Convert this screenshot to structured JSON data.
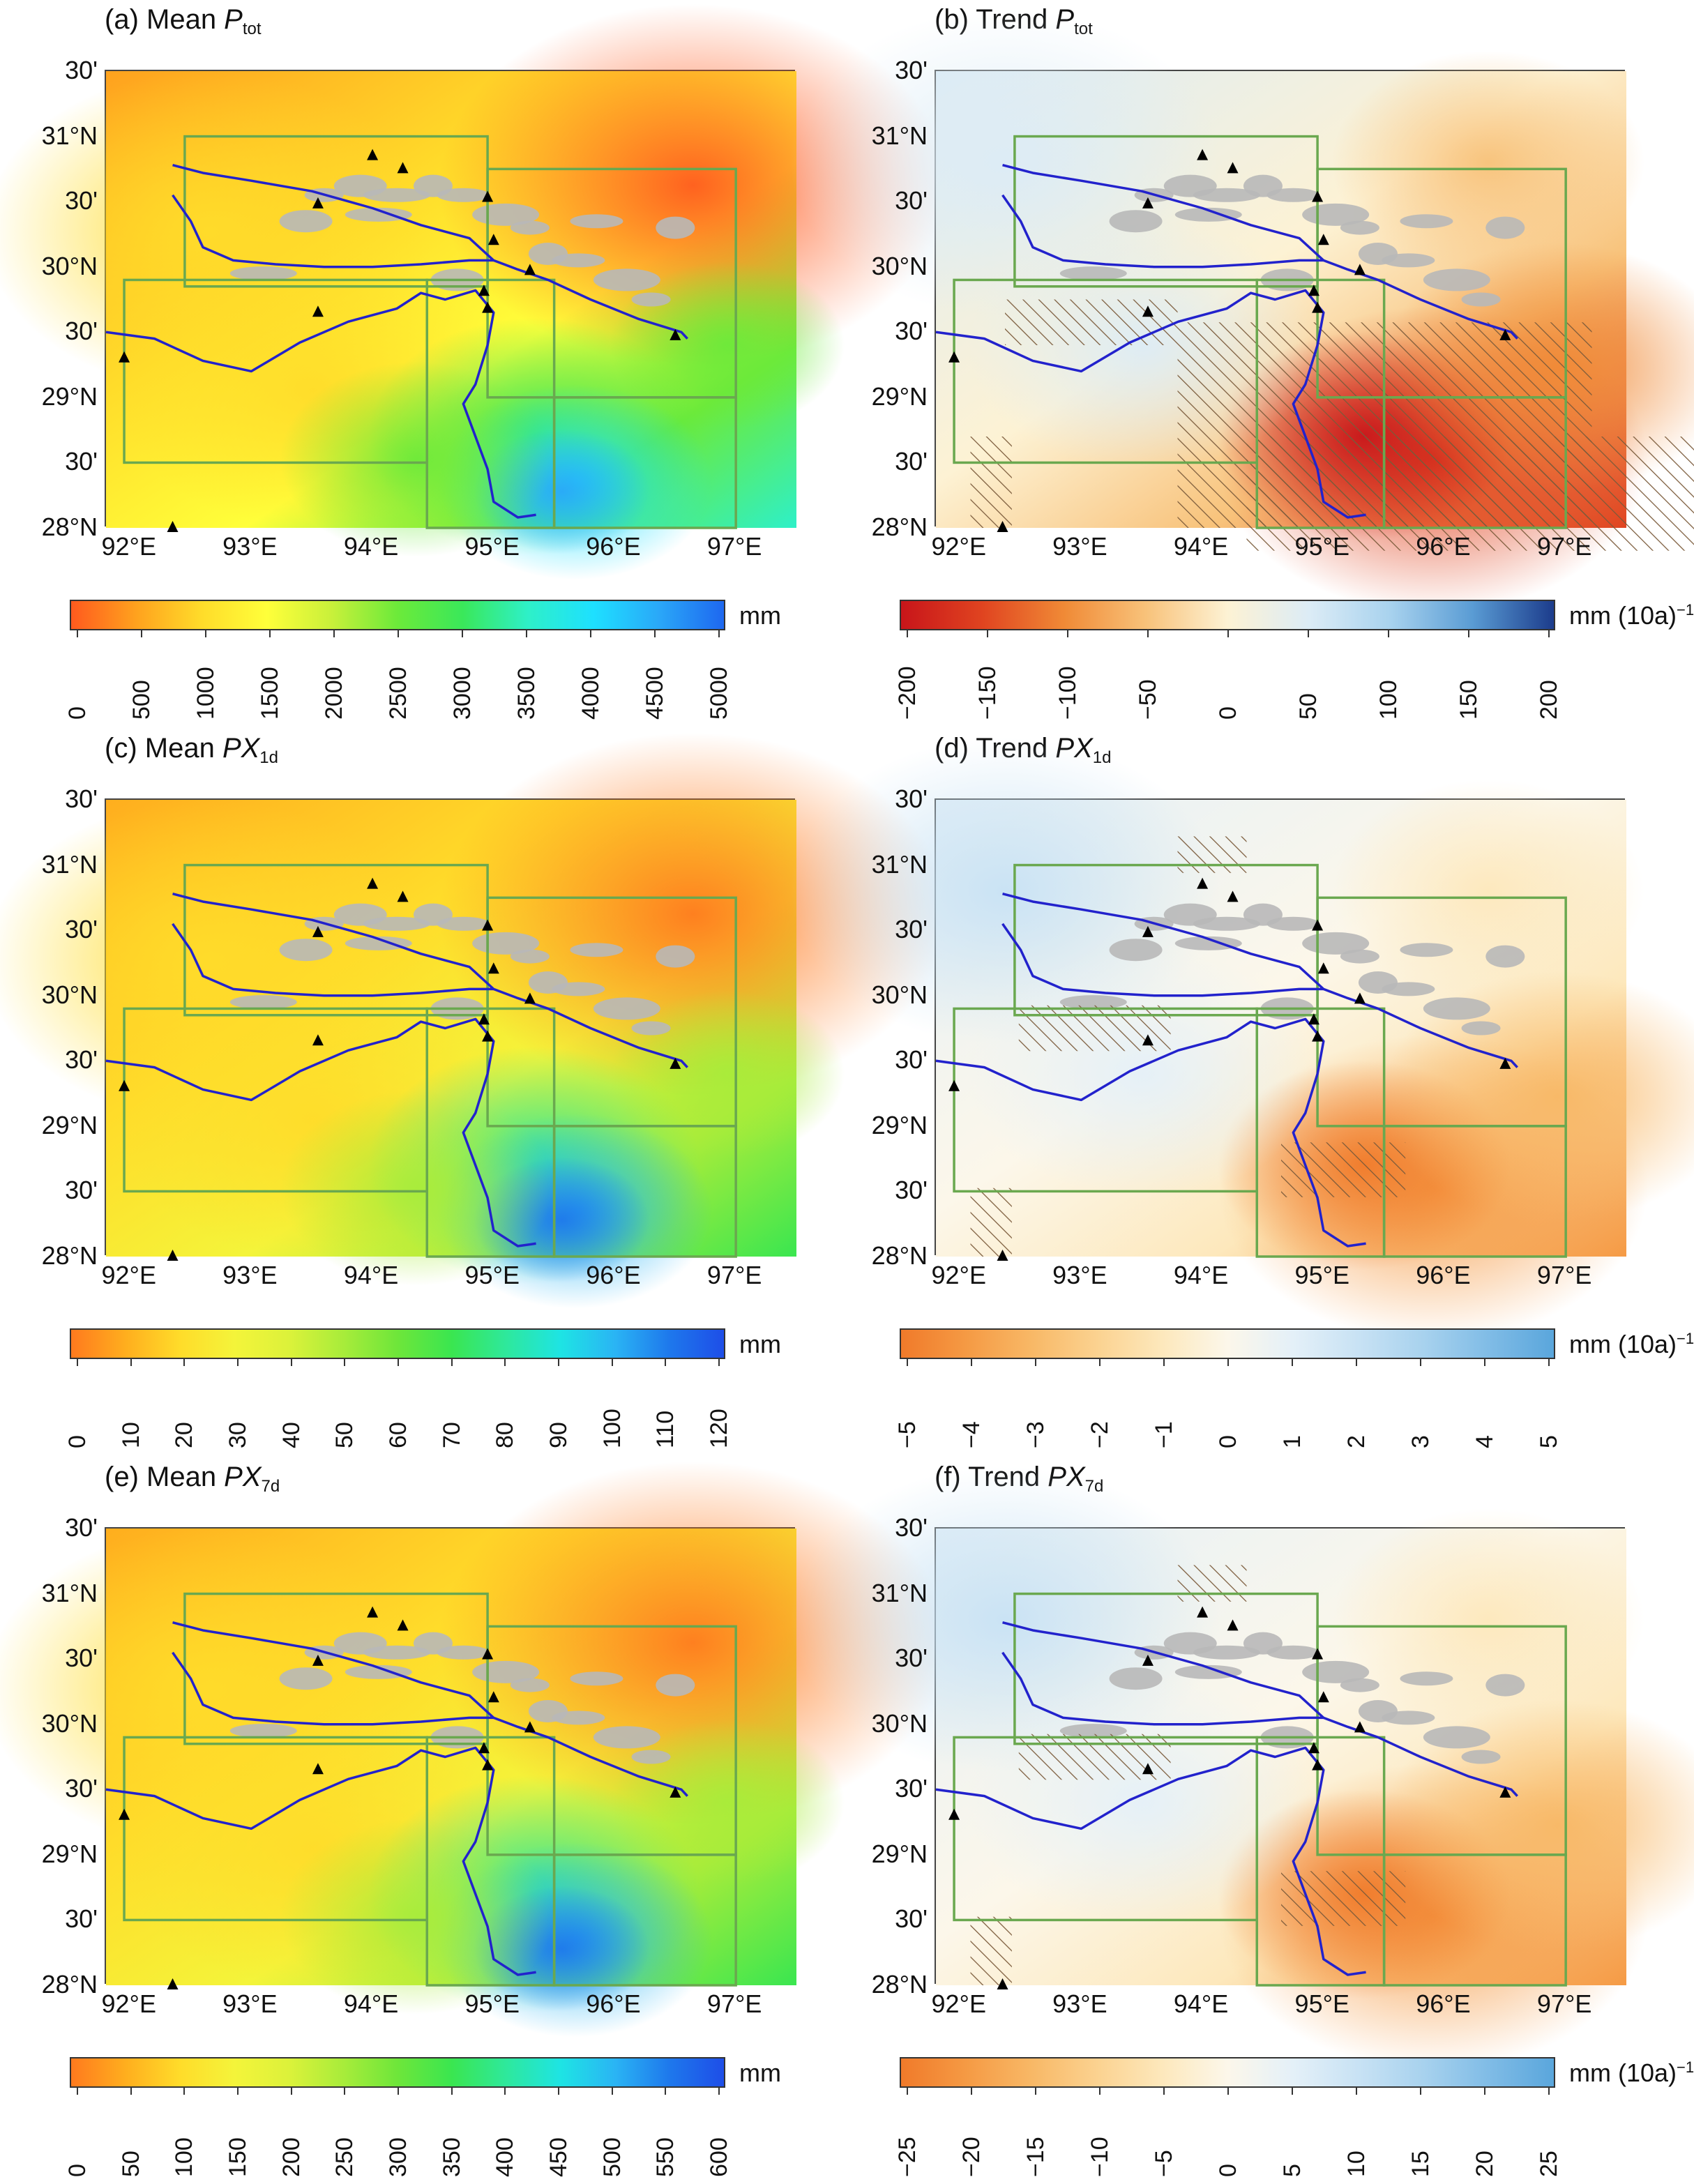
{
  "panels": [
    {
      "id": "a",
      "label": "(a) Mean ",
      "var": "P",
      "sub": "tot",
      "kind": "mean",
      "unit": "mm",
      "unit_sup": "",
      "ticks": [
        "0",
        "500",
        "1000",
        "1500",
        "2000",
        "2500",
        "3000",
        "3500",
        "4000",
        "4500",
        "5000"
      ],
      "colors": [
        "#ff5a1e",
        "#ffa21e",
        "#ffdc2a",
        "#ffff3a",
        "#c8f03a",
        "#6cea3a",
        "#3ae85a",
        "#2ef0c8",
        "#1ee0ff",
        "#2aa8f8",
        "#1e68f0"
      ],
      "base": "#f6b646"
    },
    {
      "id": "b",
      "label": "(b) Trend ",
      "var": "P",
      "sub": "tot",
      "kind": "trend",
      "unit": "mm (10a)",
      "unit_sup": "−1",
      "ticks": [
        "−200",
        "−150",
        "−100",
        "−50",
        "0",
        "50",
        "100",
        "150",
        "200"
      ],
      "colors": [
        "#c8151a",
        "#e04420",
        "#f08a36",
        "#f8c27a",
        "#fdf2d4",
        "#dcecf6",
        "#a8d2ee",
        "#5a9cd4",
        "#1c3c8c"
      ],
      "base": "#dcecf6"
    },
    {
      "id": "c",
      "label": "(c) Mean ",
      "var": "PX",
      "sub": "1d",
      "kind": "mean",
      "unit": "mm",
      "unit_sup": "",
      "ticks": [
        "0",
        "10",
        "20",
        "30",
        "40",
        "50",
        "60",
        "70",
        "80",
        "90",
        "100",
        "110",
        "120"
      ],
      "colors": [
        "#ff7a1e",
        "#ffae1e",
        "#ffdc2a",
        "#f4f43a",
        "#dcf23a",
        "#a8ec3a",
        "#6ee63a",
        "#3ae650",
        "#2ee89c",
        "#1ee4e4",
        "#2ab4f4",
        "#1e78ec",
        "#1e4ee8"
      ],
      "base": "#d4ee58"
    },
    {
      "id": "d",
      "label": "(d) Trend ",
      "var": "PX",
      "sub": "1d",
      "kind": "trend",
      "unit": "mm (10a)",
      "unit_sup": "−1",
      "ticks": [
        "−5",
        "−4",
        "−3",
        "−2",
        "−1",
        "0",
        "1",
        "2",
        "3",
        "4",
        "5"
      ],
      "colors": [
        "#f07a2a",
        "#f59a44",
        "#f8b866",
        "#fbd290",
        "#fde8bc",
        "#fcf7ea",
        "#e4f0f8",
        "#c8e2f4",
        "#a8d2ee",
        "#80bce6",
        "#5aa6dc"
      ],
      "base": "#fbe8c6"
    },
    {
      "id": "e",
      "label": "(e) Mean ",
      "var": "PX",
      "sub": "7d",
      "kind": "mean",
      "unit": "mm",
      "unit_sup": "",
      "ticks": [
        "0",
        "50",
        "100",
        "150",
        "200",
        "250",
        "300",
        "350",
        "400",
        "450",
        "500",
        "550",
        "600"
      ],
      "colors": [
        "#ff7a1e",
        "#ffae1e",
        "#ffdc2a",
        "#f4f43a",
        "#dcf23a",
        "#a8ec3a",
        "#6ee63a",
        "#3ae650",
        "#2ee89c",
        "#1ee4e4",
        "#2ab4f4",
        "#1e78ec",
        "#1e4ee8"
      ],
      "base": "#f8c640"
    },
    {
      "id": "f",
      "label": "(f) Trend ",
      "var": "PX",
      "sub": "7d",
      "kind": "trend",
      "unit": "mm (10a)",
      "unit_sup": "−1",
      "ticks": [
        "−25",
        "−20",
        "−15",
        "−10",
        "−5",
        "0",
        "5",
        "10",
        "15",
        "20",
        "25"
      ],
      "colors": [
        "#f07a2a",
        "#f59a44",
        "#f8b866",
        "#fbd290",
        "#fde8bc",
        "#fcf7ea",
        "#e4f0f8",
        "#c8e2f4",
        "#a8d2ee",
        "#80bce6",
        "#5aa6dc"
      ],
      "base": "#fbecd0"
    }
  ],
  "lat_labels": [
    "30'",
    "31°N",
    "30'",
    "30°N",
    "30'",
    "29°N",
    "30'",
    "28°N"
  ],
  "lon_labels": [
    "92°E",
    "93°E",
    "94°E",
    "95°E",
    "96°E",
    "97°E"
  ],
  "colors": {
    "river": "#2222cc",
    "box": "#6aa84f",
    "glacier": "#b8b8b8",
    "station": "#000000",
    "hatch": "#7a5a3a"
  }
}
